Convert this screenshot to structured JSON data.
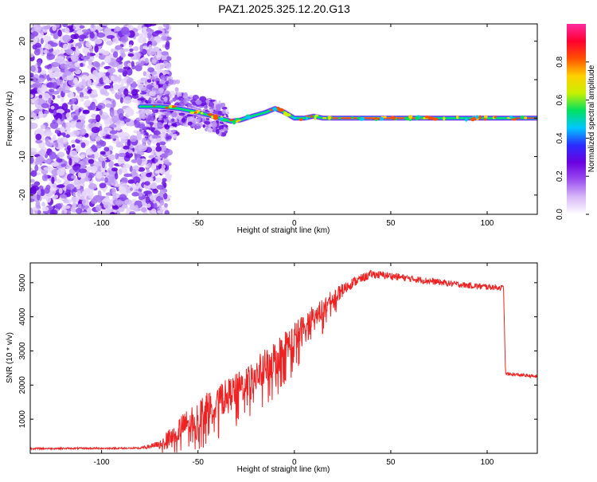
{
  "title": "PAZ1.2025.325.12.20.G13",
  "chart_data": [
    {
      "type": "heatmap",
      "xlabel": "Height of straight line (km)",
      "ylabel": "Frequency (Hz)",
      "xlim": [
        -137,
        126
      ],
      "ylim": [
        -25,
        24.5
      ],
      "xticks": [
        -100,
        -50,
        0,
        50,
        100
      ],
      "yticks": [
        -20,
        -10,
        0,
        10,
        20
      ],
      "colorbar": {
        "label": "Normalized spectral amplitude",
        "range": [
          0.0,
          1.0
        ],
        "ticks": [
          0.0,
          0.2,
          0.4,
          0.6,
          0.8
        ],
        "tick_labels": [
          "0.0",
          "0.2",
          "0.4",
          "0.6",
          "0.8"
        ],
        "colormap": [
          "#ffffff",
          "#d8b8f8",
          "#9a4ef0",
          "#6a00e0",
          "#2a2cff",
          "#00c8ff",
          "#00e060",
          "#c8f000",
          "#ffd000",
          "#ff5000",
          "#ff0030",
          "#ff2aa0"
        ]
      },
      "ridge": {
        "x": [
          -80,
          -70,
          -60,
          -50,
          -40,
          -33,
          -28,
          -22,
          -15,
          -10,
          -5,
          0,
          5,
          10,
          15,
          120
        ],
        "freq": [
          3,
          3,
          2.5,
          1.5,
          0.2,
          -0.8,
          -0.5,
          0.5,
          1.5,
          2.5,
          1.5,
          0,
          0,
          0.5,
          0,
          0
        ]
      }
    },
    {
      "type": "line",
      "xlabel": "Height of straight line (km)",
      "ylabel": "SNR (10 * v/v)",
      "xlim": [
        -137,
        126
      ],
      "ylim": [
        0,
        5580
      ],
      "xticks": [
        -100,
        -50,
        0,
        50,
        100
      ],
      "yticks": [
        1000,
        2000,
        3000,
        4000,
        5000
      ],
      "color": "#ee2222",
      "envelope": {
        "x": [
          -137,
          -80,
          -70,
          -60,
          -50,
          -40,
          -30,
          -20,
          -10,
          0,
          10,
          20,
          30,
          40,
          50,
          60,
          70,
          80,
          90,
          100,
          108.5,
          109.5,
          126
        ],
        "snr": [
          140,
          150,
          250,
          700,
          1100,
          1500,
          1850,
          2300,
          2800,
          3350,
          3950,
          4550,
          5000,
          5250,
          5200,
          5120,
          5050,
          4980,
          4920,
          4880,
          4850,
          2330,
          2250
        ],
        "noise_amplitude": [
          25,
          25,
          120,
          350,
          500,
          500,
          500,
          500,
          550,
          500,
          400,
          250,
          150,
          120,
          110,
          100,
          100,
          90,
          90,
          90,
          80,
          50,
          50
        ]
      }
    }
  ]
}
